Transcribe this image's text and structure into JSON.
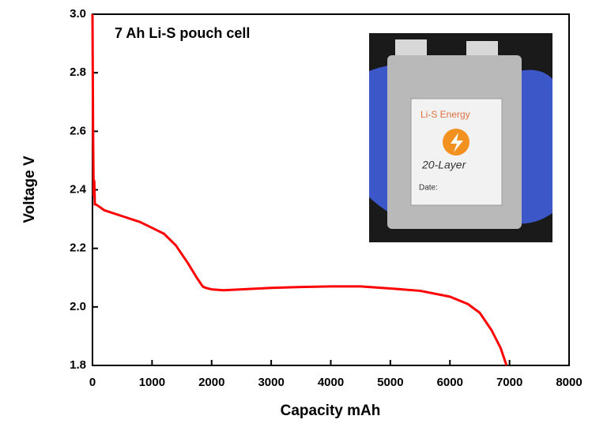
{
  "chart_data": {
    "type": "line",
    "annotation": "7 Ah Li-S pouch cell",
    "xlabel": "Capacity mAh",
    "ylabel": "Voltage V",
    "x": [
      0,
      5,
      10,
      20,
      30,
      40,
      60,
      200,
      500,
      800,
      1000,
      1200,
      1400,
      1600,
      1750,
      1850,
      1900,
      2000,
      2200,
      2500,
      3000,
      3500,
      4000,
      4500,
      5000,
      5500,
      6000,
      6300,
      6500,
      6700,
      6850,
      6950
    ],
    "values": [
      3.0,
      2.8,
      2.6,
      2.38,
      2.43,
      2.35,
      2.35,
      2.33,
      2.31,
      2.29,
      2.27,
      2.25,
      2.21,
      2.15,
      2.1,
      2.07,
      2.065,
      2.06,
      2.057,
      2.06,
      2.065,
      2.068,
      2.07,
      2.07,
      2.063,
      2.055,
      2.035,
      2.01,
      1.98,
      1.92,
      1.86,
      1.8
    ],
    "color": "#ff0000",
    "xlim": [
      0,
      8000
    ],
    "xticks": [
      0,
      1000,
      2000,
      3000,
      4000,
      5000,
      6000,
      7000,
      8000
    ],
    "ylim": [
      1.8,
      3.0
    ],
    "yticks": [
      1.8,
      {
        "value": 2,
        "label": "2.0"
      },
      2.2,
      2.4,
      2.6,
      2.8,
      {
        "value": 3,
        "label": "3.0"
      }
    ],
    "photo_labels": [
      "Li-S Energy",
      "20-Layer",
      "Date:"
    ]
  }
}
